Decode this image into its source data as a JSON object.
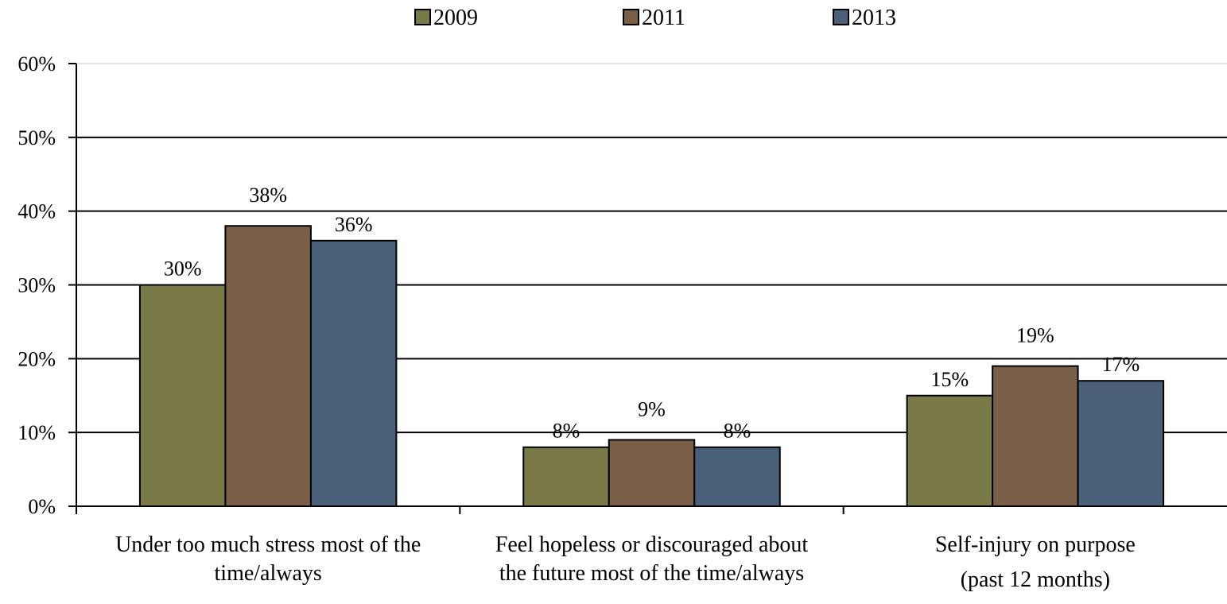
{
  "chart_data": {
    "type": "bar",
    "categories": [
      [
        "Under too much stress most of the",
        "time/always"
      ],
      [
        "Feel hopeless or discouraged about",
        "the future most of the time/always"
      ],
      [
        "Self-injury on purpose",
        "(past 12 months)"
      ]
    ],
    "series": [
      {
        "name": "2009",
        "values": [
          30,
          8,
          15
        ],
        "labels": [
          "30%",
          "8%",
          "15%"
        ],
        "color": "#7a7a48"
      },
      {
        "name": "2011",
        "values": [
          38,
          9,
          19
        ],
        "labels": [
          "38%",
          "9%",
          "19%"
        ],
        "color": "#7a5f48"
      },
      {
        "name": "2013",
        "values": [
          36,
          8,
          17
        ],
        "labels": [
          "36%",
          "8%",
          "17%"
        ],
        "color": "#4a6078"
      }
    ],
    "ylim": [
      0,
      60
    ],
    "yticks": [
      "0%",
      "10%",
      "20%",
      "30%",
      "40%",
      "50%",
      "60%"
    ],
    "grid": true,
    "legend_position": "top-center",
    "title": "",
    "xlabel": "",
    "ylabel": ""
  }
}
